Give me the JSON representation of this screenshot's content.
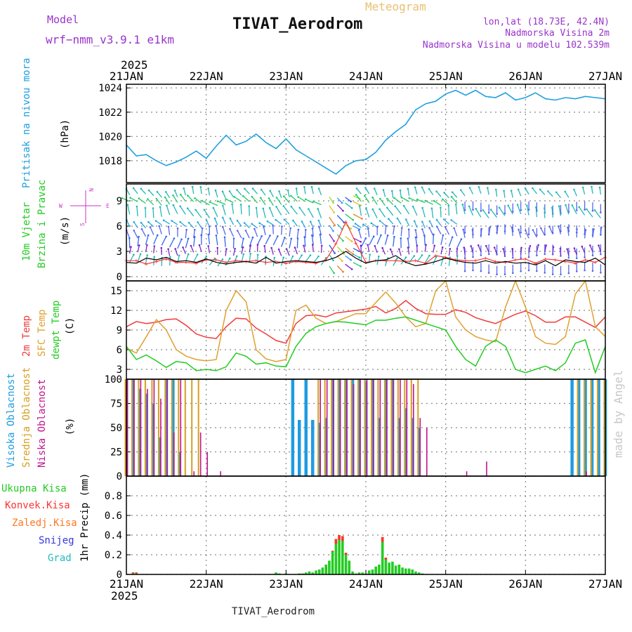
{
  "header": {
    "model_label": "Model",
    "model_name": "wrf−nmm_v3.9.1 e1km",
    "product": "Meteogram",
    "station": "TIVAT_Aerodrom",
    "coords": "lon,lat (18.73E, 42.4N)",
    "elevation": "Nadmorska Visina 2m",
    "model_elevation": "Nadmorska Visina u modelu 102.539m",
    "footer_station": "TIVAT_Aerodrom",
    "watermark": "made by Angel"
  },
  "colors": {
    "title": "#9933cc",
    "pressure": "#1fa0e0",
    "wind_speed": "#000000",
    "gust": "#ff3333",
    "t2m": "#f03c3c",
    "sfc": "#e0a030",
    "dewpt": "#22cc22",
    "cloud_high": "#1f9be0",
    "cloud_mid": "#d4a020",
    "cloud_low": "#c0148c",
    "precip_total": "#22cc22",
    "precip_conv": "#ff3333",
    "precip_frz": "#ff7722",
    "snow": "#3333dd",
    "grad": "#22bbbb",
    "grid": "#888888"
  },
  "x_axis": {
    "year": "2025",
    "ticks": [
      "21JAN",
      "22JAN",
      "23JAN",
      "24JAN",
      "25JAN",
      "26JAN",
      "27JAN"
    ]
  },
  "panels": {
    "pressure": {
      "title": "Pritisak na nivou mora",
      "unit": "(hPa)"
    },
    "wind": {
      "title1": "10m Vjetar",
      "title2": "Brzina i Pravac",
      "unit": "(m/s)",
      "compass": [
        "W",
        "E",
        "N",
        "S"
      ]
    },
    "temp": {
      "l1": "2m Temp",
      "l2": "SFC Temp",
      "l3": "dewpt Temp",
      "unit": "(C)"
    },
    "cloud": {
      "l1": "Visoka Oblacnost",
      "l2": "Srednja Oblacnost",
      "l3": "Niska Oblacnost",
      "unit": "(%)"
    },
    "precip": {
      "unit": "1hr Precip (mm)",
      "legend": [
        "Ukupna Kisa",
        "Konvek.Kisa",
        "Zaledj.Kisa",
        "Snijeg",
        "Grad"
      ]
    }
  },
  "chart_data": [
    {
      "type": "line",
      "id": "pressure",
      "x": [
        0,
        3,
        6,
        9,
        12,
        15,
        18,
        21,
        24,
        27,
        30,
        33,
        36,
        39,
        42,
        45,
        48,
        51,
        54,
        57,
        60,
        63,
        66,
        69,
        72,
        75,
        78,
        81,
        84,
        87,
        90,
        93,
        96,
        99,
        102,
        105,
        108,
        111,
        114,
        117,
        120,
        123,
        126,
        129,
        132,
        135,
        138,
        141,
        144
      ],
      "series": [
        {
          "name": "Pritisak",
          "values": [
            1019.3,
            1018.4,
            1018.5,
            1018.0,
            1017.6,
            1017.9,
            1018.3,
            1018.8,
            1018.2,
            1019.2,
            1020.1,
            1019.3,
            1019.6,
            1020.2,
            1019.5,
            1019.0,
            1019.8,
            1018.9,
            1018.4,
            1017.9,
            1017.4,
            1016.9,
            1017.6,
            1018.0,
            1018.1,
            1018.7,
            1019.7,
            1020.4,
            1021.0,
            1022.2,
            1022.7,
            1022.9,
            1023.5,
            1023.8,
            1023.4,
            1023.8,
            1023.3,
            1023.2,
            1023.6,
            1023.0,
            1023.2,
            1023.6,
            1023.1,
            1023.0,
            1023.2,
            1023.1,
            1023.3,
            1023.2,
            1023.1
          ]
        }
      ],
      "ylim": [
        1016.2,
        1024.3
      ],
      "yticks": [
        1018,
        1020,
        1022,
        1024
      ]
    },
    {
      "type": "line",
      "id": "wind",
      "x": [
        0,
        3,
        6,
        9,
        12,
        15,
        18,
        21,
        24,
        27,
        30,
        33,
        36,
        39,
        42,
        45,
        48,
        51,
        54,
        57,
        60,
        63,
        66,
        69,
        72,
        75,
        78,
        81,
        84,
        87,
        90,
        93,
        96,
        99,
        102,
        105,
        108,
        111,
        114,
        117,
        120,
        123,
        126,
        129,
        132,
        135,
        138,
        141,
        144
      ],
      "series": [
        {
          "name": "10m",
          "values": [
            1.7,
            1.6,
            2.2,
            2.0,
            2.3,
            1.8,
            1.9,
            1.7,
            2.1,
            1.7,
            1.5,
            1.7,
            1.8,
            1.6,
            2.3,
            1.6,
            1.8,
            1.9,
            1.8,
            1.7,
            1.9,
            2.3,
            3.0,
            2.2,
            1.6,
            1.9,
            2.0,
            2.5,
            1.7,
            1.3,
            1.5,
            1.8,
            2.2,
            1.9,
            1.7,
            1.6,
            1.9,
            1.6,
            1.8,
            1.6,
            1.7,
            1.4,
            1.9,
            1.3,
            2.0,
            1.8,
            1.7,
            2.2,
            1.4
          ]
        },
        {
          "name": "gust",
          "values": [
            1.9,
            1.9,
            1.5,
            1.8,
            2.1,
            1.7,
            1.7,
            1.6,
            2.0,
            2.0,
            1.7,
            1.9,
            1.8,
            1.9,
            1.7,
            1.8,
            1.6,
            1.8,
            1.7,
            1.6,
            2.0,
            3.9,
            6.5,
            4.0,
            1.7,
            1.9,
            1.9,
            1.9,
            1.8,
            1.9,
            1.6,
            2.5,
            2.3,
            2.0,
            1.9,
            1.9,
            2.2,
            1.8,
            1.7,
            2.0,
            2.1,
            1.6,
            2.1,
            2.0,
            1.8,
            1.6,
            2.0,
            1.7,
            2.3
          ]
        }
      ],
      "ylim": [
        -0.5,
        11
      ],
      "yticks": [
        0,
        3,
        6,
        9
      ]
    },
    {
      "type": "line",
      "id": "temperature",
      "x": [
        0,
        3,
        6,
        9,
        12,
        15,
        18,
        21,
        24,
        27,
        30,
        33,
        36,
        39,
        42,
        45,
        48,
        51,
        54,
        57,
        60,
        63,
        66,
        69,
        72,
        75,
        78,
        81,
        84,
        87,
        90,
        93,
        96,
        99,
        102,
        105,
        108,
        111,
        114,
        117,
        120,
        123,
        126,
        129,
        132,
        135,
        138,
        141,
        144
      ],
      "series": [
        {
          "name": "2m Temp",
          "values": [
            9.5,
            10.3,
            10.0,
            10.2,
            10.6,
            10.7,
            9.7,
            8.4,
            7.9,
            7.7,
            9.5,
            10.8,
            10.7,
            9.3,
            8.4,
            7.4,
            7.0,
            10.0,
            11.2,
            11.3,
            11.0,
            11.6,
            11.8,
            12.0,
            12.2,
            12.6,
            11.6,
            12.3,
            13.5,
            12.3,
            11.5,
            11.4,
            11.4,
            12.1,
            11.7,
            10.9,
            10.4,
            10.0,
            10.7,
            11.4,
            11.9,
            11.2,
            10.2,
            10.2,
            11.0,
            11.0,
            10.2,
            9.4,
            11.0
          ]
        },
        {
          "name": "SFC Temp",
          "values": [
            6.2,
            5.5,
            8.0,
            10.6,
            9.0,
            6.0,
            5.0,
            4.5,
            4.3,
            4.5,
            12.0,
            15.0,
            13.3,
            6.0,
            4.6,
            4.2,
            4.5,
            12.0,
            12.8,
            10.8,
            10.0,
            10.3,
            10.9,
            11.5,
            11.5,
            13.2,
            14.8,
            13.1,
            11.0,
            9.5,
            10.0,
            15.0,
            16.5,
            11.0,
            9.0,
            8.0,
            7.5,
            7.2,
            12.5,
            16.5,
            12.5,
            8.0,
            7.0,
            6.8,
            8.0,
            14.5,
            16.5,
            9.5,
            8.0
          ]
        },
        {
          "name": "dewpt Temp",
          "values": [
            6.5,
            4.5,
            5.2,
            4.3,
            3.3,
            4.2,
            4.0,
            2.8,
            3.0,
            2.8,
            3.4,
            5.5,
            5.0,
            3.8,
            4.0,
            3.5,
            3.4,
            6.5,
            8.5,
            9.5,
            10.0,
            10.3,
            10.2,
            10.0,
            9.8,
            10.5,
            10.5,
            10.8,
            11.0,
            10.5,
            10.0,
            9.5,
            9.0,
            6.5,
            4.5,
            3.5,
            6.5,
            7.5,
            6.5,
            3.0,
            2.5,
            3.0,
            3.5,
            2.8,
            4.0,
            7.0,
            7.5,
            2.5,
            6.5
          ]
        }
      ],
      "ylim": [
        1.5,
        16.5
      ],
      "yticks": [
        3,
        6,
        9,
        12,
        15
      ]
    },
    {
      "type": "bar",
      "id": "cloud",
      "x": [
        0,
        2,
        4,
        6,
        8,
        10,
        12,
        14,
        16,
        18,
        20,
        22,
        24,
        26,
        28,
        30,
        32,
        34,
        36,
        38,
        40,
        42,
        44,
        46,
        48,
        50,
        52,
        54,
        56,
        58,
        60,
        62,
        64,
        66,
        68,
        70,
        72,
        74,
        76,
        78,
        80,
        82,
        84,
        86,
        88,
        90,
        92,
        94,
        96,
        98,
        100,
        102,
        104,
        106,
        108,
        110,
        112,
        114,
        116,
        118,
        120,
        122,
        124,
        126,
        128,
        130,
        132,
        134,
        136,
        138,
        140,
        142,
        144
      ],
      "series": [
        {
          "name": "Visoka Oblacnost",
          "values": [
            100,
            100,
            90,
            85,
            75,
            40,
            100,
            100,
            25,
            0,
            0,
            0,
            0,
            0,
            0,
            0,
            0,
            0,
            0,
            0,
            0,
            0,
            0,
            0,
            0,
            100,
            58,
            100,
            58,
            55,
            60,
            100,
            100,
            100,
            100,
            100,
            98,
            100,
            60,
            100,
            100,
            60,
            70,
            60,
            50,
            0,
            0,
            0,
            0,
            0,
            0,
            0,
            0,
            0,
            0,
            0,
            0,
            0,
            0,
            0,
            0,
            0,
            0,
            0,
            0,
            0,
            0,
            100,
            100,
            100,
            100,
            100,
            100
          ]
        },
        {
          "name": "Srednja Oblacnost",
          "values": [
            100,
            100,
            100,
            100,
            100,
            100,
            100,
            100,
            100,
            100,
            100,
            100,
            0,
            0,
            0,
            0,
            0,
            0,
            0,
            0,
            0,
            0,
            0,
            0,
            0,
            0,
            0,
            0,
            0,
            100,
            100,
            100,
            100,
            100,
            100,
            100,
            100,
            100,
            100,
            100,
            100,
            100,
            100,
            100,
            100,
            0,
            0,
            0,
            0,
            0,
            0,
            0,
            0,
            0,
            0,
            0,
            0,
            0,
            0,
            0,
            0,
            0,
            0,
            0,
            0,
            0,
            0,
            0,
            100,
            100,
            100,
            100,
            100
          ]
        },
        {
          "name": "Niska Oblacnost",
          "values": [
            100,
            100,
            100,
            90,
            100,
            80,
            100,
            45,
            100,
            0,
            5,
            45,
            25,
            0,
            5,
            0,
            0,
            0,
            0,
            0,
            0,
            0,
            0,
            0,
            0,
            0,
            0,
            0,
            0,
            100,
            100,
            100,
            100,
            100,
            95,
            100,
            100,
            100,
            100,
            100,
            100,
            100,
            100,
            95,
            60,
            50,
            0,
            0,
            0,
            0,
            0,
            5,
            0,
            0,
            15,
            0,
            0,
            0,
            0,
            0,
            0,
            0,
            0,
            0,
            0,
            0,
            0,
            0,
            0,
            5,
            0,
            0,
            0
          ]
        }
      ],
      "ylim": [
        0,
        100
      ],
      "yticks": [
        0,
        25,
        50,
        75,
        100
      ]
    },
    {
      "type": "bar",
      "id": "precip",
      "x": [
        2,
        3,
        45,
        46,
        48,
        52,
        53,
        54,
        55,
        56,
        57,
        58,
        59,
        60,
        61,
        62,
        63,
        64,
        65,
        66,
        67,
        68,
        69,
        70,
        71,
        72,
        73,
        74,
        75,
        76,
        77,
        78,
        79,
        80,
        81,
        82,
        83,
        84,
        85,
        86,
        87,
        88,
        89
      ],
      "series": [
        {
          "name": "Ukupna Kisa",
          "values": [
            0.02,
            0.02,
            0.02,
            0.01,
            0.01,
            0.01,
            0.01,
            0.02,
            0.03,
            0.02,
            0.04,
            0.05,
            0.07,
            0.1,
            0.14,
            0.24,
            0.36,
            0.4,
            0.39,
            0.22,
            0.14,
            0.03,
            0.01,
            0.02,
            0.02,
            0.01,
            0.04,
            0.05,
            0.08,
            0.1,
            0.38,
            0.17,
            0.12,
            0.13,
            0.09,
            0.1,
            0.07,
            0.06,
            0.06,
            0.05,
            0.03,
            0.02,
            0.01
          ]
        },
        {
          "name": "Konvek.Kisa",
          "values": [
            0.01,
            0.01,
            0,
            0,
            0,
            0,
            0,
            0,
            0,
            0,
            0,
            0,
            0,
            0,
            0,
            0.01,
            0.05,
            0.05,
            0.05,
            0.02,
            0,
            0,
            0,
            0,
            0,
            0,
            0,
            0,
            0,
            0,
            0.05,
            0.02,
            0,
            0,
            0,
            0,
            0,
            0,
            0,
            0,
            0,
            0,
            0
          ]
        }
      ],
      "ylim": [
        0,
        1.0
      ],
      "yticks": [
        0,
        0.2,
        0.4,
        0.6,
        0.8
      ]
    }
  ]
}
